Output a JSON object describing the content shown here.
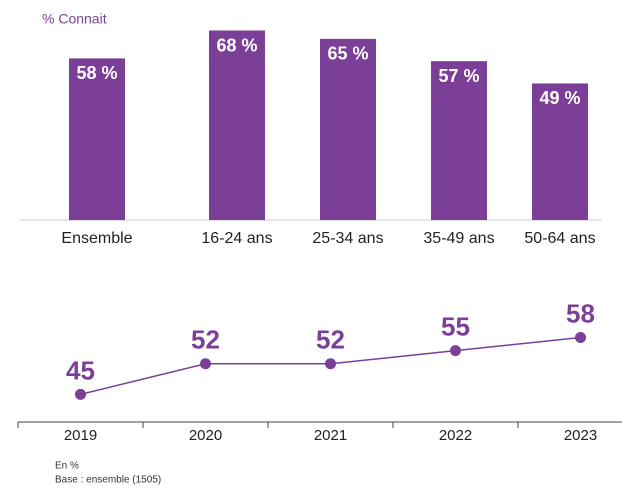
{
  "chart_data": [
    {
      "type": "bar",
      "title": "% Connait",
      "categories": [
        "Ensemble",
        "16-24 ans",
        "25-34 ans",
        "35-49 ans",
        "50-64 ans"
      ],
      "values": [
        58,
        68,
        65,
        57,
        49
      ],
      "value_labels": [
        "58 %",
        "68 %",
        "65 %",
        "57 %",
        "49 %"
      ],
      "color": "#7b3f98",
      "ylim": [
        0,
        75
      ]
    },
    {
      "type": "line",
      "categories": [
        "2019",
        "2020",
        "2021",
        "2022",
        "2023"
      ],
      "values": [
        45,
        52,
        52,
        55,
        58
      ],
      "color": "#7b3f98",
      "ylim": [
        38,
        62
      ]
    }
  ],
  "footnotes": [
    "En %",
    "Base : ensemble (1505)"
  ]
}
